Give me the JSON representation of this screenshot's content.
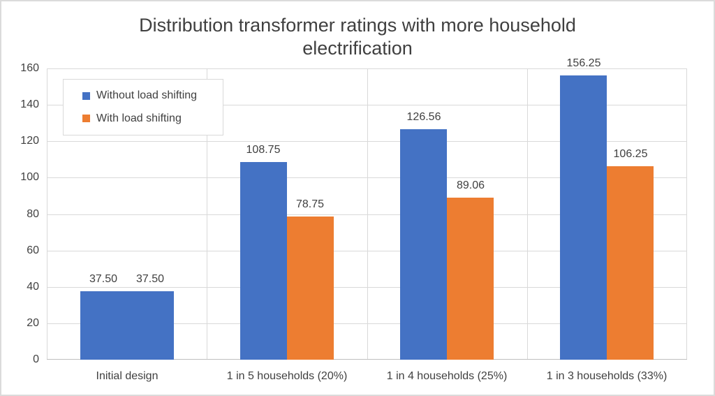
{
  "figure": {
    "background": "#FFFFFF",
    "border_color": "#DBDBDB"
  },
  "chart_data": {
    "type": "bar",
    "title": "Distribution transformer ratings with more household electrification",
    "categories": [
      "Initial design",
      "1 in 5 households (20%)",
      "1 in 4 households (25%)",
      "1 in 3 households (33%)"
    ],
    "series": [
      {
        "name": "Without load shifting",
        "color": "#4472C4",
        "values": [
          37.5,
          108.75,
          126.56,
          156.25
        ],
        "labels": [
          "37.50",
          "108.75",
          "126.56",
          "156.25"
        ]
      },
      {
        "name": "With load shifting",
        "color": "#ED7D31",
        "values": [
          37.5,
          78.75,
          89.06,
          106.25
        ],
        "labels": [
          "37.50",
          "78.75",
          "89.06",
          "106.25"
        ],
        "point_colors": [
          "#4472C4",
          "#ED7D31",
          "#ED7D31",
          "#ED7D31"
        ]
      }
    ],
    "xlabel": "",
    "ylabel": "",
    "ylim": [
      0,
      160
    ],
    "y_ticks": [
      0,
      20,
      40,
      60,
      80,
      100,
      120,
      140,
      160
    ],
    "grid": {
      "horizontal": true,
      "vertical": true,
      "color": "#D9D9D9"
    },
    "axis_line_color": "#BFBFBF",
    "text_color": "#404040",
    "data_labels": true,
    "legend": {
      "position": "top-left",
      "border_color": "#D9D9D9"
    }
  }
}
